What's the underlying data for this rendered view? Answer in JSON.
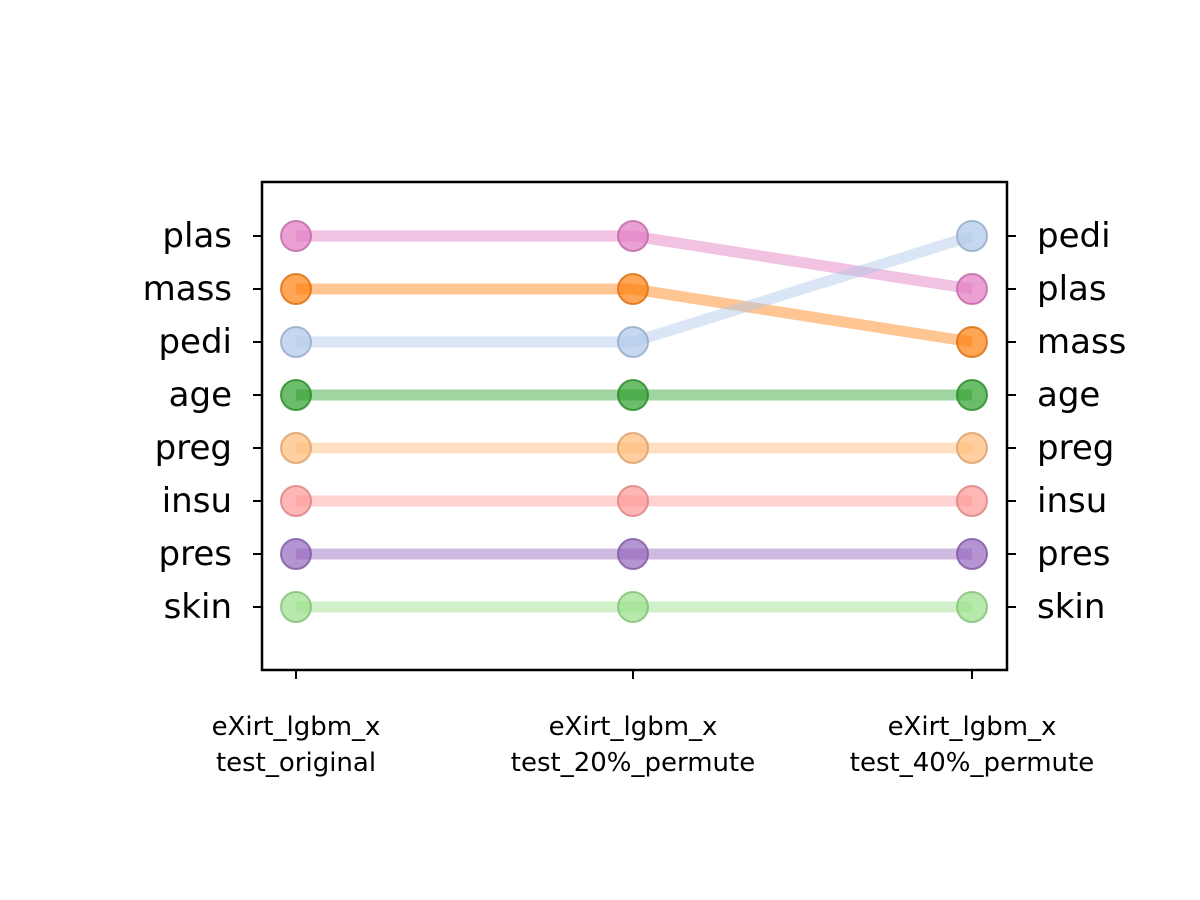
{
  "chart_data": {
    "type": "line",
    "title": "",
    "xlabel": "",
    "ylabel": "",
    "categories": [
      [
        "eXirt_lgbm_x",
        "test_original"
      ],
      [
        "eXirt_lgbm_x",
        "test_20%_permute"
      ],
      [
        "eXirt_lgbm_x",
        "test_40%_permute"
      ]
    ],
    "ranks": [
      1,
      2,
      3,
      4,
      5,
      6,
      7,
      8
    ],
    "y_range": [
      0,
      9
    ],
    "grid": false,
    "left_labels": [
      "plas",
      "mass",
      "pedi",
      "age",
      "preg",
      "insu",
      "pres",
      "skin"
    ],
    "right_labels": [
      "pedi",
      "plas",
      "mass",
      "age",
      "preg",
      "insu",
      "pres",
      "skin"
    ],
    "series": [
      {
        "name": "plas",
        "values": [
          1,
          1,
          2
        ],
        "color": "#e377c2"
      },
      {
        "name": "mass",
        "values": [
          2,
          2,
          3
        ],
        "color": "#ff7f0e"
      },
      {
        "name": "pedi",
        "values": [
          3,
          3,
          1
        ],
        "color": "#aec7e8"
      },
      {
        "name": "age",
        "values": [
          4,
          4,
          4
        ],
        "color": "#2ca02c"
      },
      {
        "name": "preg",
        "values": [
          5,
          5,
          5
        ],
        "color": "#ffbb78"
      },
      {
        "name": "insu",
        "values": [
          6,
          6,
          6
        ],
        "color": "#ff9896"
      },
      {
        "name": "pres",
        "values": [
          7,
          7,
          7
        ],
        "color": "#9467bd"
      },
      {
        "name": "skin",
        "values": [
          8,
          8,
          8
        ],
        "color": "#98df8a"
      }
    ]
  }
}
